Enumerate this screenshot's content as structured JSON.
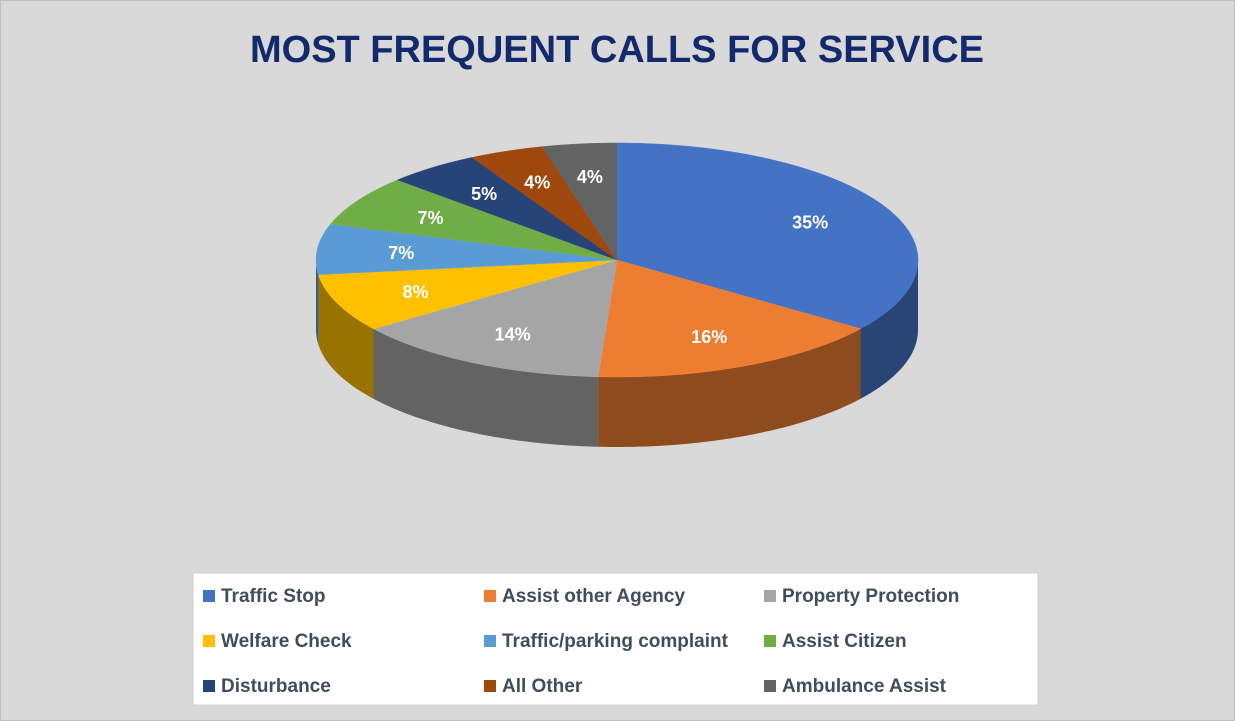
{
  "chart_data": {
    "type": "pie",
    "title": "MOST FREQUENT CALLS FOR SERVICE",
    "categories": [
      "Traffic Stop",
      "Assist other Agency",
      "Property Protection",
      "Welfare Check",
      "Traffic/parking complaint",
      "Assist Citizen",
      "Disturbance",
      "All Other",
      "Ambulance Assist"
    ],
    "values": [
      35,
      16,
      14,
      8,
      7,
      7,
      5,
      4,
      4
    ],
    "value_labels": [
      "35%",
      "16%",
      "14%",
      "8%",
      "7%",
      "7%",
      "5%",
      "4%",
      "4%"
    ],
    "colors": [
      "#4472c4",
      "#ed7d31",
      "#a5a5a5",
      "#ffc000",
      "#5b9bd5",
      "#70ad47",
      "#264478",
      "#9e480e",
      "#636363"
    ],
    "legend": "bottom"
  }
}
